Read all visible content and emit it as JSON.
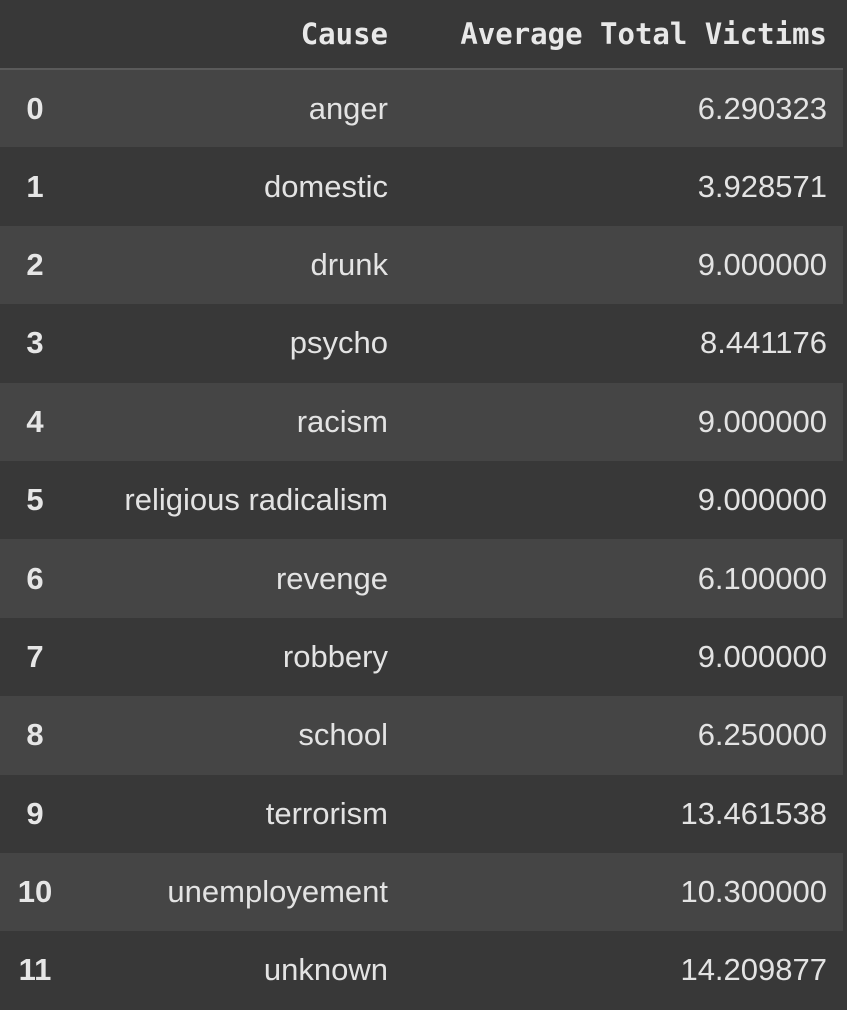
{
  "table": {
    "columns": {
      "index": "",
      "cause": "Cause",
      "value": "Average Total Victims"
    },
    "rows": [
      {
        "index": "0",
        "cause": "anger",
        "value": "6.290323"
      },
      {
        "index": "1",
        "cause": "domestic",
        "value": "3.928571"
      },
      {
        "index": "2",
        "cause": "drunk",
        "value": "9.000000"
      },
      {
        "index": "3",
        "cause": "psycho",
        "value": "8.441176"
      },
      {
        "index": "4",
        "cause": "racism",
        "value": "9.000000"
      },
      {
        "index": "5",
        "cause": "religious radicalism",
        "value": "9.000000"
      },
      {
        "index": "6",
        "cause": "revenge",
        "value": "6.100000"
      },
      {
        "index": "7",
        "cause": "robbery",
        "value": "9.000000"
      },
      {
        "index": "8",
        "cause": "school",
        "value": "6.250000"
      },
      {
        "index": "9",
        "cause": "terrorism",
        "value": "13.461538"
      },
      {
        "index": "10",
        "cause": "unemployement",
        "value": "10.300000"
      },
      {
        "index": "11",
        "cause": "unknown",
        "value": "14.209877"
      }
    ]
  },
  "colors": {
    "background": "#383838",
    "row_alt": "#454545",
    "text": "#e3e3e3"
  }
}
